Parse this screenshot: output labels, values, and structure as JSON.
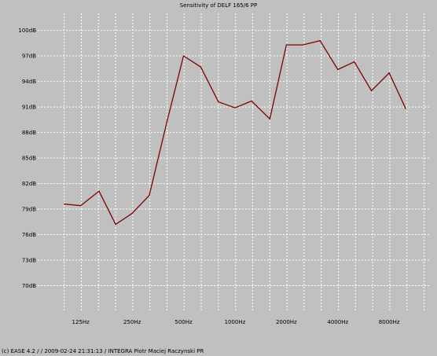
{
  "chart_data": {
    "type": "line",
    "title": "Sensitivity of DELF 165/6 PP",
    "footer": "(c) EASE 4.2  /   / 2009-02-24 21:31:13 / INTEGRA Piotr Maciej Raczynski PR",
    "x_scale": "log",
    "xlim": [
      70,
      14000
    ],
    "ylim": [
      67,
      102
    ],
    "x_ticks": [
      125,
      250,
      500,
      1000,
      2000,
      4000,
      8000
    ],
    "x_tick_labels": [
      "125Hz",
      "250Hz",
      "500Hz",
      "1000Hz",
      "2000Hz",
      "4000Hz",
      "8000Hz"
    ],
    "y_ticks": [
      70,
      73,
      76,
      79,
      82,
      85,
      88,
      91,
      94,
      97,
      100
    ],
    "y_tick_labels": [
      "70dB",
      "73dB",
      "76dB",
      "79dB",
      "82dB",
      "85dB",
      "88dB",
      "91dB",
      "94dB",
      "97dB",
      "100dB"
    ],
    "grid": true,
    "line_color": "#800000",
    "series": [
      {
        "x": [
          100,
          125,
          160,
          200,
          250,
          315,
          400,
          500,
          630,
          800,
          1000,
          1250,
          1600,
          2000,
          2500,
          3150,
          4000,
          5000,
          6300,
          8000,
          10000
        ],
        "values": [
          79.6,
          79.4,
          81.1,
          77.2,
          78.5,
          80.6,
          89.3,
          97.0,
          95.7,
          91.6,
          90.9,
          91.7,
          89.6,
          98.3,
          98.3,
          98.8,
          95.4,
          96.3,
          92.9,
          95.0,
          90.8
        ]
      }
    ]
  }
}
